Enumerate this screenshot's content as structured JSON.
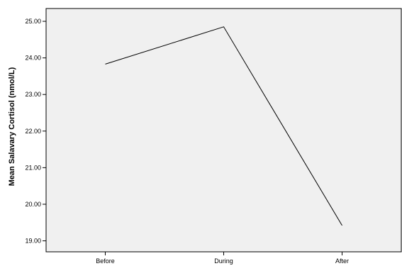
{
  "chart_data": {
    "type": "line",
    "title": "",
    "xlabel": "",
    "ylabel": "Mean Salavary Cortisol (nmol/L)",
    "categories": [
      "Before",
      "During",
      "After"
    ],
    "series": [
      {
        "values": [
          23.83,
          24.85,
          19.42
        ]
      }
    ],
    "ylim": [
      18.7,
      25.35
    ],
    "yticks": [
      19.0,
      20.0,
      21.0,
      22.0,
      23.0,
      24.0,
      25.0
    ],
    "ytick_labels": [
      "19.00",
      "20.00",
      "21.00",
      "22.00",
      "23.00",
      "24.00",
      "25.00"
    ],
    "grid": false,
    "colors": {
      "plot_background": "#f0f0f0",
      "line": "#000000",
      "axis": "#000000"
    }
  }
}
